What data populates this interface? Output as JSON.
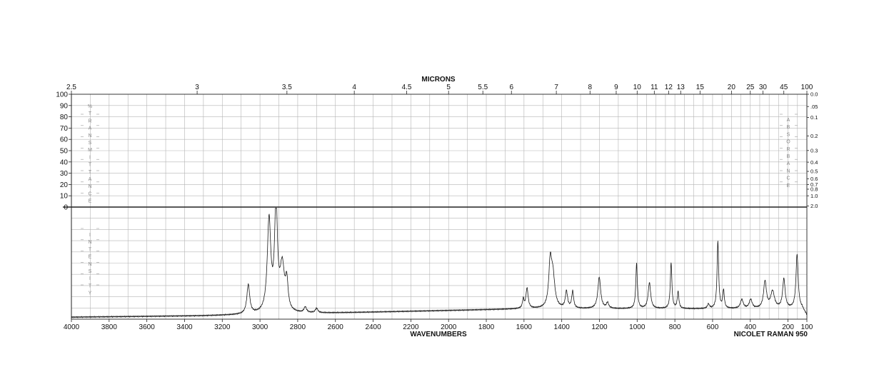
{
  "chart_data": {
    "type": "line",
    "instrument": "NICOLET RAMAN 950",
    "xlabel": "WAVENUMBERS",
    "x2label": "MICRONS",
    "x_range": [
      4000,
      100
    ],
    "x_ticks": [
      4000,
      3800,
      3600,
      3400,
      3200,
      3000,
      2800,
      2600,
      2400,
      2200,
      2000,
      1800,
      1600,
      1400,
      1200,
      1000,
      800,
      600,
      400,
      200,
      100
    ],
    "x_tick_labels": [
      "4000",
      "3800",
      "3600",
      "3400",
      "3200",
      "3000",
      "2800",
      "2600",
      "2400",
      "2200",
      "2000",
      "1800",
      "1600",
      "1400",
      "1200",
      "1000",
      "800",
      "600",
      "400",
      "200",
      "100"
    ],
    "micron_ticks": [
      {
        "label": "2.5",
        "wn": 4000
      },
      {
        "label": "3",
        "wn": 3333.3
      },
      {
        "label": "3.5",
        "wn": 2857.1
      },
      {
        "label": "4",
        "wn": 2500
      },
      {
        "label": "4.5",
        "wn": 2222.2
      },
      {
        "label": "5",
        "wn": 2000
      },
      {
        "label": "5.5",
        "wn": 1818.2
      },
      {
        "label": "6",
        "wn": 1666.7
      },
      {
        "label": "7",
        "wn": 1428.6
      },
      {
        "label": "8",
        "wn": 1250
      },
      {
        "label": "9",
        "wn": 1111.1
      },
      {
        "label": "10",
        "wn": 1000
      },
      {
        "label": "11",
        "wn": 909.1
      },
      {
        "label": "12",
        "wn": 833.3
      },
      {
        "label": "13",
        "wn": 769.2
      },
      {
        "label": "15",
        "wn": 666.7
      },
      {
        "label": "20",
        "wn": 500
      },
      {
        "label": "25",
        "wn": 400
      },
      {
        "label": "30",
        "wn": 333.3
      },
      {
        "label": "45",
        "wn": 222.2
      },
      {
        "label": "100",
        "wn": 100
      }
    ],
    "transmittance_axis": {
      "label_letters": [
        "%",
        "T",
        "R",
        "A",
        "N",
        "S",
        "M",
        "I",
        "T",
        "T",
        "A",
        "N",
        "C",
        "E"
      ],
      "ticks": [
        "100",
        "90",
        "80",
        "70",
        "60",
        "50",
        "40",
        "30",
        "20",
        "10",
        "0"
      ]
    },
    "absorbance_axis": {
      "label_letters": [
        "A",
        "B",
        "S",
        "O",
        "R",
        "B",
        "A",
        "N",
        "C",
        "E"
      ],
      "ticks": [
        {
          "label": "0.0",
          "value": 0.0
        },
        {
          "label": ".05",
          "value": 0.05
        },
        {
          "label": "0.1",
          "value": 0.1
        },
        {
          "label": "0.2",
          "value": 0.2
        },
        {
          "label": "0.3",
          "value": 0.3
        },
        {
          "label": "0.4",
          "value": 0.4
        },
        {
          "label": "0.5",
          "value": 0.5
        },
        {
          "label": "0.6",
          "value": 0.6
        },
        {
          "label": "0.7",
          "value": 0.7
        },
        {
          "label": "0.8",
          "value": 0.8
        },
        {
          "label": "1.0",
          "value": 1.0
        },
        {
          "label": "2.0",
          "value": 2.0
        }
      ]
    },
    "intensity_axis": {
      "label_letters": [
        "I",
        "N",
        "T",
        "E",
        "N",
        "S",
        "I",
        "T",
        "Y"
      ]
    },
    "grid": true,
    "baseline": {
      "start_wn": 4000,
      "start_level": 0.018,
      "rise_start_wn": 3300,
      "end_wn": 1600,
      "end_level": 0.092
    },
    "peaks": [
      {
        "wn": 3062,
        "height": 0.26,
        "width": 9
      },
      {
        "wn": 2952,
        "height": 0.82,
        "width": 11
      },
      {
        "wn": 2915,
        "height": 0.95,
        "width": 9
      },
      {
        "wn": 2882,
        "height": 0.4,
        "width": 14
      },
      {
        "wn": 2858,
        "height": 0.24,
        "width": 8
      },
      {
        "wn": 2760,
        "height": 0.05,
        "width": 8
      },
      {
        "wn": 2700,
        "height": 0.04,
        "width": 8
      },
      {
        "wn": 1604,
        "height": 0.08,
        "width": 5
      },
      {
        "wn": 1584,
        "height": 0.18,
        "width": 7
      },
      {
        "wn": 1461,
        "height": 0.38,
        "width": 9
      },
      {
        "wn": 1447,
        "height": 0.28,
        "width": 12
      },
      {
        "wn": 1375,
        "height": 0.15,
        "width": 7
      },
      {
        "wn": 1342,
        "height": 0.15,
        "width": 6
      },
      {
        "wn": 1201,
        "height": 0.28,
        "width": 9
      },
      {
        "wn": 1157,
        "height": 0.05,
        "width": 7
      },
      {
        "wn": 1003,
        "height": 0.4,
        "width": 5
      },
      {
        "wn": 935,
        "height": 0.23,
        "width": 8
      },
      {
        "wn": 820,
        "height": 0.41,
        "width": 5
      },
      {
        "wn": 783,
        "height": 0.15,
        "width": 5
      },
      {
        "wn": 622,
        "height": 0.04,
        "width": 6
      },
      {
        "wn": 572,
        "height": 0.6,
        "width": 5
      },
      {
        "wn": 542,
        "height": 0.16,
        "width": 5
      },
      {
        "wn": 445,
        "height": 0.08,
        "width": 9
      },
      {
        "wn": 398,
        "height": 0.08,
        "width": 9
      },
      {
        "wn": 322,
        "height": 0.24,
        "width": 9
      },
      {
        "wn": 282,
        "height": 0.15,
        "width": 12
      },
      {
        "wn": 222,
        "height": 0.26,
        "width": 8
      },
      {
        "wn": 152,
        "height": 0.48,
        "width": 7
      }
    ]
  }
}
